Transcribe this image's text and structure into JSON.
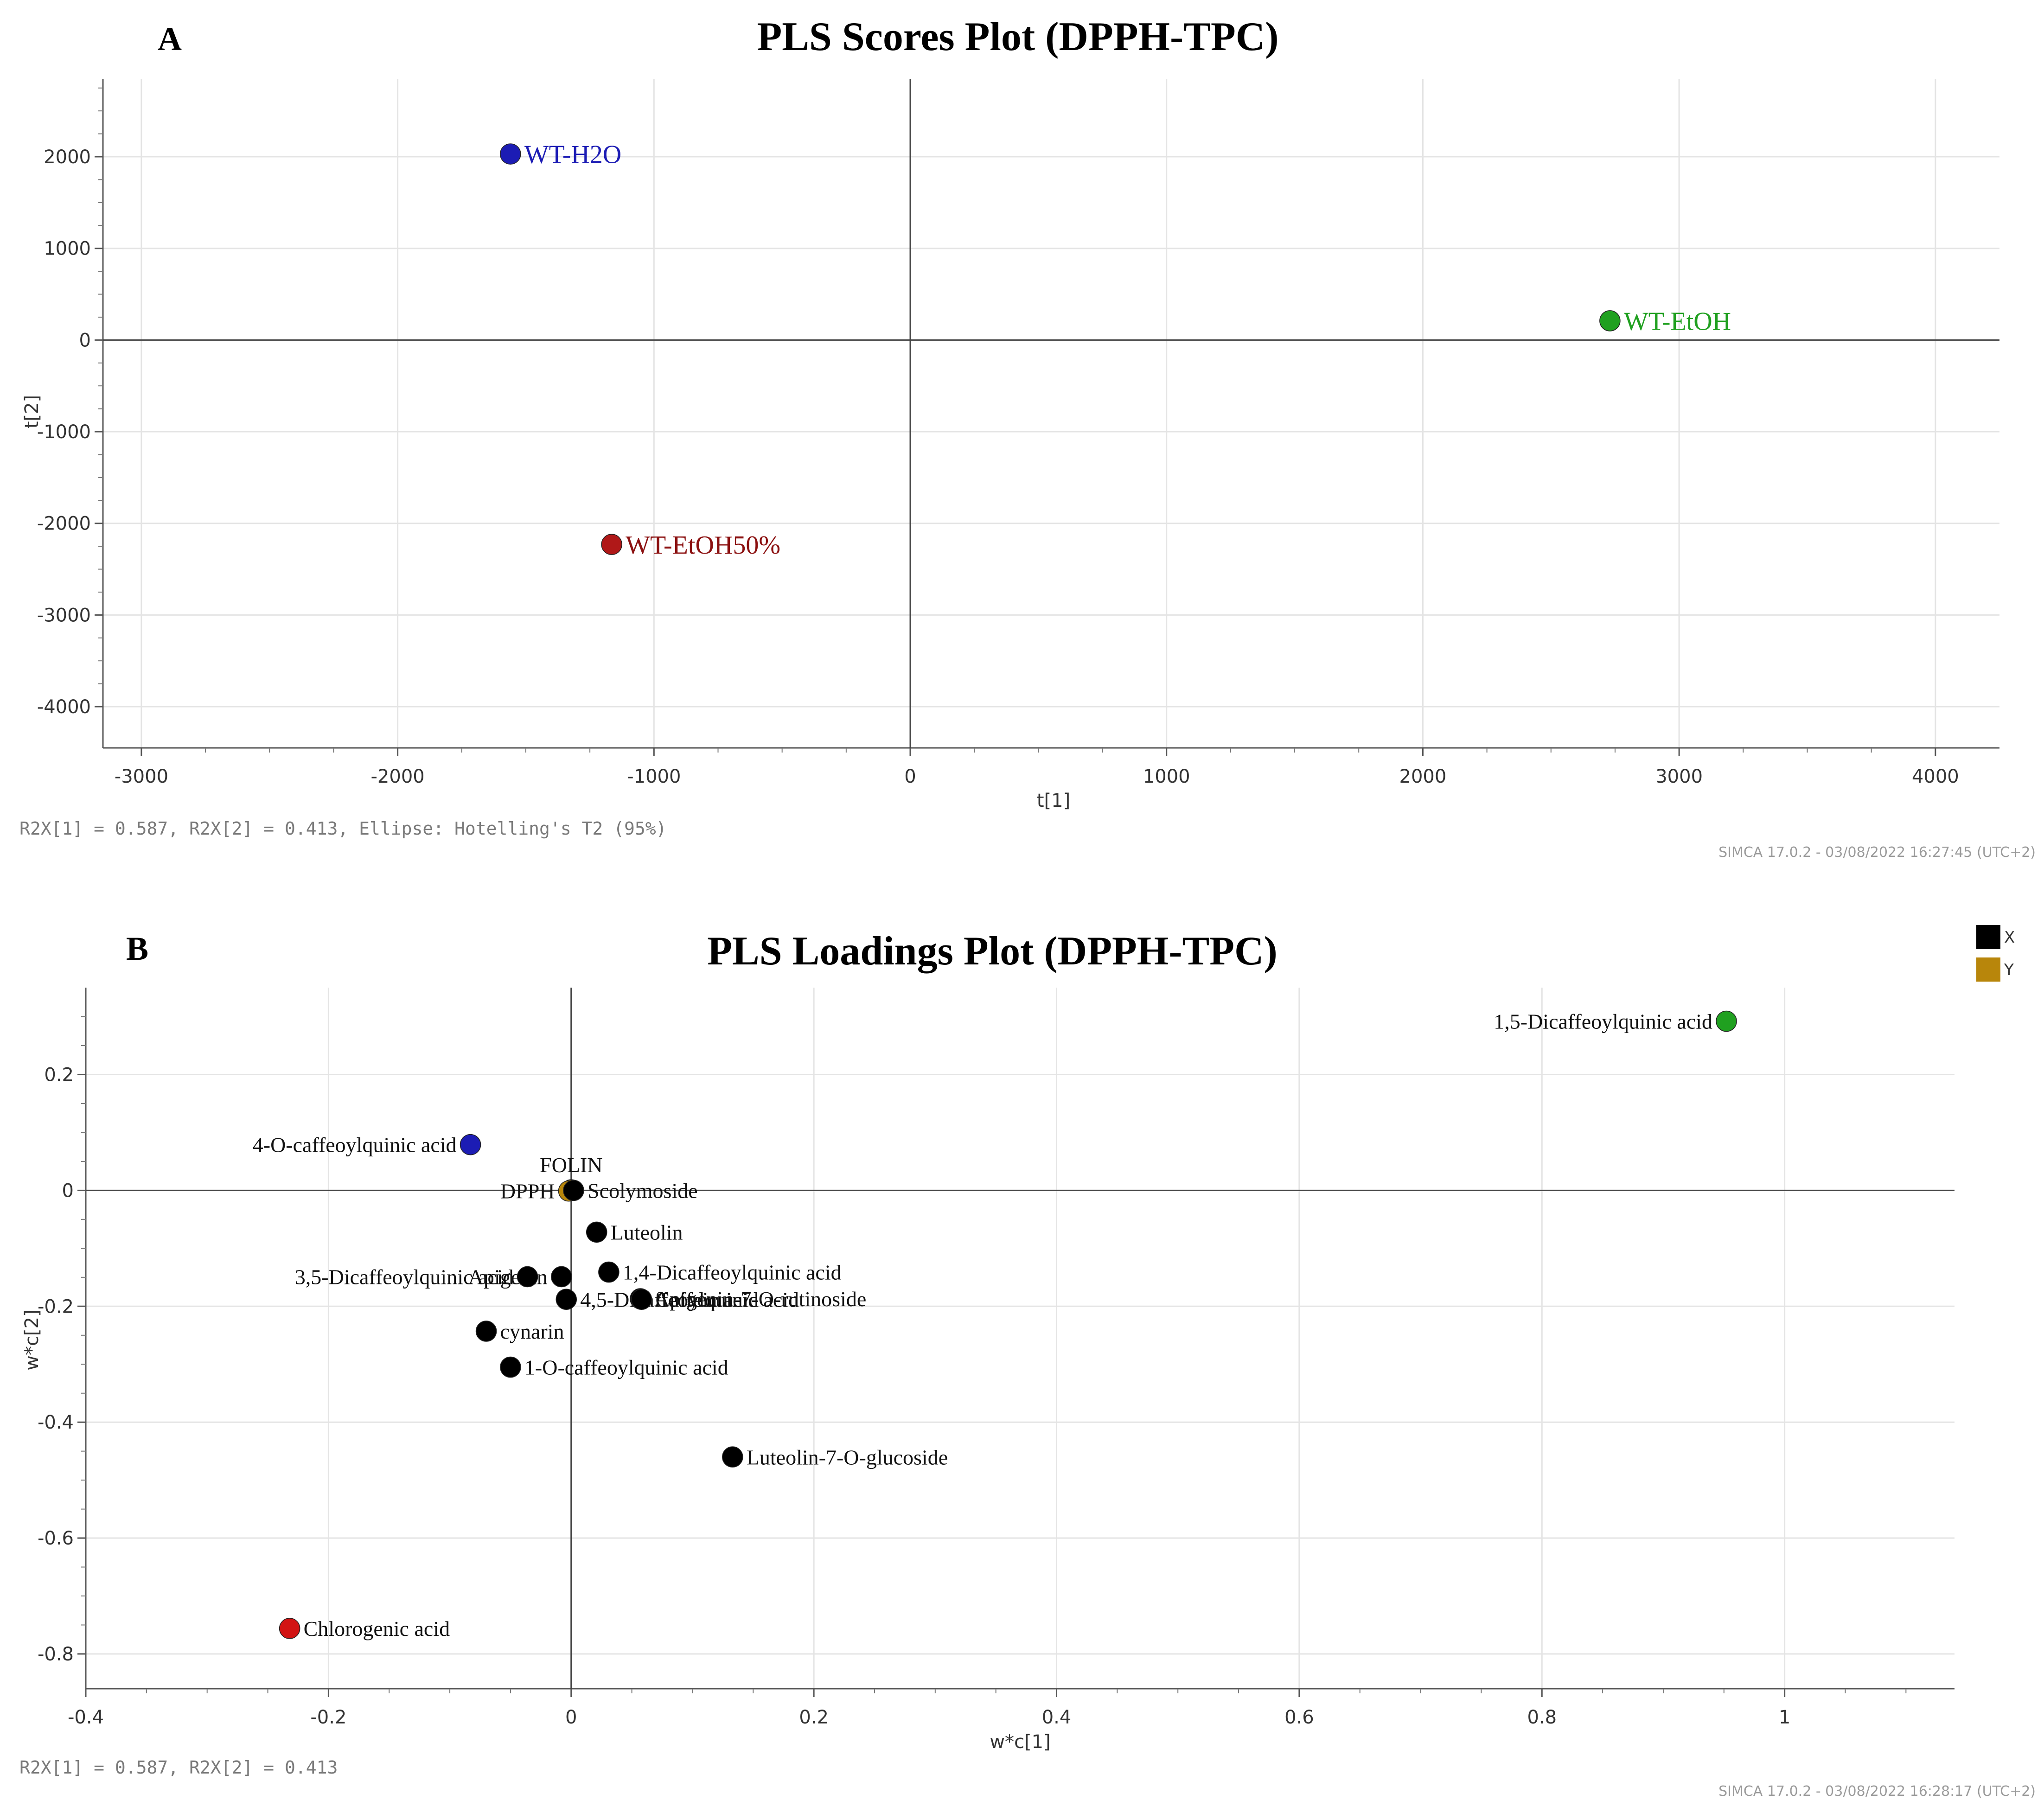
{
  "chart_data": [
    {
      "type": "scatter",
      "panel": "A",
      "title": "PLS Scores Plot (DPPH-TPC)",
      "xlabel": "t[1]",
      "ylabel": "t[2]",
      "xlim": [
        -3150,
        4250
      ],
      "ylim": [
        -4450,
        2850
      ],
      "xticks": [
        -3000,
        -2000,
        -1000,
        0,
        1000,
        2000,
        3000,
        4000
      ],
      "yticks": [
        2000,
        1000,
        0,
        -1000,
        -2000,
        -3000,
        -4000
      ],
      "grid": true,
      "points": [
        {
          "label": "WT-H2O",
          "x": -1560,
          "y": 2030,
          "color": "#1c1cb4",
          "label_color": "#1c1cb4"
        },
        {
          "label": "WT-EtOH",
          "x": 2730,
          "y": 210,
          "color": "#20a020",
          "label_color": "#20a020"
        },
        {
          "label": "WT-EtOH50%",
          "x": -1165,
          "y": -2230,
          "color": "#b01818",
          "label_color": "#8b1010"
        }
      ],
      "footer": "R2X[1] = 0.587, R2X[2] = 0.413, Ellipse: Hotelling's T2 (95%)",
      "stamp": "SIMCA 17.0.2 - 03/08/2022 16:27:45 (UTC+2)"
    },
    {
      "type": "scatter",
      "panel": "B",
      "title": "PLS Loadings Plot (DPPH-TPC)",
      "xlabel": "w*c[1]",
      "ylabel": "w*c[2]",
      "xlim": [
        -0.4,
        1.14
      ],
      "ylim": [
        -0.86,
        0.35
      ],
      "xticks": [
        -0.4,
        -0.2,
        0,
        0.2,
        0.4,
        0.6,
        0.8,
        1
      ],
      "yticks": [
        0.2,
        0,
        -0.2,
        -0.4,
        -0.6,
        -0.8
      ],
      "grid": true,
      "legend": [
        {
          "label": "X",
          "color": "#000000"
        },
        {
          "label": "Y",
          "color": "#b8860b"
        }
      ],
      "points": [
        {
          "label": "1,5-Dicaffeoylquinic acid",
          "x": 0.952,
          "y": 0.292,
          "color": "#20a020",
          "side": "left"
        },
        {
          "label": "4-O-caffeoylquinic acid",
          "x": -0.083,
          "y": 0.079,
          "color": "#1c1cb4",
          "side": "left"
        },
        {
          "label": "FOLIN",
          "x": 0.0,
          "y": 0.001,
          "color": "#b8860b",
          "side": "above"
        },
        {
          "label": "DPPH",
          "x": -0.002,
          "y": -0.001,
          "color": "#b8860b",
          "side": "left"
        },
        {
          "label": "Scolymoside",
          "x": 0.002,
          "y": 0.0,
          "color": "#000000",
          "side": "right"
        },
        {
          "label": "Luteolin",
          "x": 0.021,
          "y": -0.072,
          "color": "#000000",
          "side": "right"
        },
        {
          "label": "1,4-Dicaffeoylquinic acid",
          "x": 0.031,
          "y": -0.141,
          "color": "#000000",
          "side": "right"
        },
        {
          "label": "Apigenin",
          "x": -0.008,
          "y": -0.149,
          "color": "#000000",
          "side": "left"
        },
        {
          "label": "3,5-Dicaffeoylquinic acid",
          "x": -0.036,
          "y": -0.149,
          "color": "#000000",
          "side": "left"
        },
        {
          "label": "4,5-Dicaffeoylquinic acid",
          "x": -0.004,
          "y": -0.188,
          "color": "#000000",
          "side": "right"
        },
        {
          "label": "Apigenin-7-O-rutinoside",
          "x": 0.057,
          "y": -0.187,
          "color": "#000000",
          "side": "right"
        },
        {
          "label": "Caffeic acid",
          "x": 0.058,
          "y": -0.188,
          "color": "#000000",
          "side": "right"
        },
        {
          "label": "cynarin",
          "x": -0.07,
          "y": -0.243,
          "color": "#000000",
          "side": "right"
        },
        {
          "label": "1-O-caffeoylquinic acid",
          "x": -0.05,
          "y": -0.305,
          "color": "#000000",
          "side": "right"
        },
        {
          "label": "Luteolin-7-O-glucoside",
          "x": 0.133,
          "y": -0.46,
          "color": "#000000",
          "side": "right"
        },
        {
          "label": "Chlorogenic acid",
          "x": -0.232,
          "y": -0.756,
          "color": "#d21414",
          "side": "right"
        }
      ],
      "footer": "R2X[1] = 0.587, R2X[2] = 0.413",
      "stamp": "SIMCA 17.0.2 - 03/08/2022 16:28:17 (UTC+2)"
    }
  ]
}
